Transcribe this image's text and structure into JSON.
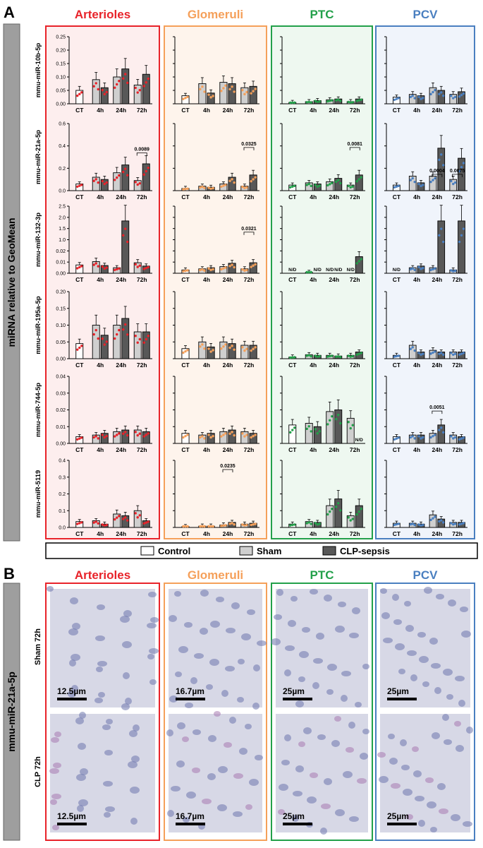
{
  "panels": {
    "a": "A",
    "b": "B"
  },
  "y_axis_title": "miRNA relative to GeoMean",
  "regions": [
    {
      "name": "Arterioles",
      "color": "#e8232a",
      "fill": "#fdeeee"
    },
    {
      "name": "Glomeruli",
      "color": "#f5a05a",
      "fill": "#fef4ec"
    },
    {
      "name": "PTC",
      "color": "#23a04a",
      "fill": "#eef8f0"
    },
    {
      "name": "PCV",
      "color": "#4a7fc0",
      "fill": "#f0f4fb"
    }
  ],
  "mirnas": [
    "mmu-miR-10b-5p",
    "mmu-miR-21a-5p",
    "mmu-miR-132-3p",
    "mmu-miR-195a-5p",
    "mmu-miR-744-5p",
    "mmu-miR-5119"
  ],
  "x_ticks": [
    "CT",
    "4h",
    "24h",
    "72h"
  ],
  "y_ticks": [
    [
      "0.00",
      "0.05",
      "0.10",
      "0.15",
      "0.20",
      "0.25"
    ],
    [
      "0.0",
      "0.2",
      "0.4",
      "0.6"
    ],
    [
      "0.00",
      "0.01",
      "0.02",
      "1.0",
      "1.5",
      "2.0",
      "2.5"
    ],
    [
      "0.00",
      "0.05",
      "0.10",
      "0.15",
      "0.20"
    ],
    [
      "0.00",
      "0.01",
      "0.02",
      "0.03",
      "0.04"
    ],
    [
      "0.0",
      "0.1",
      "0.2",
      "0.3",
      "0.4"
    ]
  ],
  "legend": [
    {
      "label": "Control",
      "color": "#ffffff"
    },
    {
      "label": "Sham",
      "color": "#cfcfcf"
    },
    {
      "label": "CLP-sepsis",
      "color": "#585858"
    }
  ],
  "pvalues": [
    {
      "row": 1,
      "region": 0,
      "label": "0.0089"
    },
    {
      "row": 1,
      "region": 1,
      "label": "0.0325"
    },
    {
      "row": 1,
      "region": 2,
      "label": "0.0081"
    },
    {
      "row": 1,
      "region": 3,
      "label": "0.0004"
    },
    {
      "row": 1,
      "region": 3,
      "label": "0.0075"
    },
    {
      "row": 2,
      "region": 1,
      "label": "0.0321"
    },
    {
      "row": 4,
      "region": 3,
      "label": "0.0051"
    },
    {
      "row": 5,
      "region": 1,
      "label": "0.0235"
    }
  ],
  "nd_label": "N/D",
  "panel_b": {
    "row_group_label": "mmu-miR-21a-5p",
    "row_labels": [
      "Sham 72h",
      "CLP 72h"
    ],
    "scale_bars": [
      "12.5µm",
      "16.7µm",
      "25µm",
      "25µm"
    ]
  },
  "chart_data": {
    "type": "bar",
    "series_order": [
      "Control",
      "Sham",
      "CLP-sepsis"
    ],
    "categories": [
      "CT",
      "4h",
      "24h",
      "72h"
    ],
    "note_bar_layout": "CT: Control; 4h, 24h, 72h: Sham then CLP-sepsis",
    "charts": [
      {
        "mirna": "mmu-miR-10b-5p",
        "ylim": [
          0,
          0.25
        ],
        "regions": {
          "Arterioles": [
            0.05,
            0.09,
            0.06,
            0.1,
            0.13,
            0.07,
            0.11
          ],
          "Glomeruli": [
            0.03,
            0.075,
            0.04,
            0.08,
            0.075,
            0.06,
            0.065
          ],
          "PTC": [
            0.005,
            0.008,
            0.012,
            0.015,
            0.018,
            0.008,
            0.018
          ],
          "PCV": [
            0.025,
            0.035,
            0.03,
            0.06,
            0.05,
            0.035,
            0.045
          ]
        }
      },
      {
        "mirna": "mmu-miR-21a-5p",
        "ylim": [
          0,
          0.6
        ],
        "regions": {
          "Arterioles": [
            0.06,
            0.12,
            0.1,
            0.16,
            0.23,
            0.09,
            0.24
          ],
          "Glomeruli": [
            0.02,
            0.04,
            0.03,
            0.06,
            0.12,
            0.04,
            0.14
          ],
          "PTC": [
            0.05,
            0.07,
            0.06,
            0.08,
            0.11,
            0.05,
            0.14
          ],
          "PCV": [
            0.05,
            0.13,
            0.07,
            0.13,
            0.38,
            0.1,
            0.29
          ]
        }
      },
      {
        "mirna": "mmu-miR-132-3p",
        "ylim": [
          0,
          2.5
        ],
        "regions": {
          "Arterioles": [
            0.0075,
            0.0105,
            0.007,
            0.005,
            2.0,
            0.0095,
            0.0065
          ],
          "Glomeruli": [
            0.003,
            0.004,
            0.005,
            0.006,
            0.009,
            0.004,
            0.0095
          ],
          "PTC": [
            null,
            0.0008,
            null,
            null,
            null,
            null,
            0.015
          ],
          "PCV": [
            null,
            0.005,
            0.0065,
            0.005,
            2.0,
            0.003,
            2.0
          ]
        }
      },
      {
        "mirna": "mmu-miR-195a-5p",
        "ylim": [
          0,
          0.2
        ],
        "regions": {
          "Arterioles": [
            0.045,
            0.1,
            0.07,
            0.1,
            0.12,
            0.08,
            0.08
          ],
          "Glomeruli": [
            0.03,
            0.05,
            0.035,
            0.05,
            0.045,
            0.04,
            0.04
          ],
          "PTC": [
            0.005,
            0.012,
            0.01,
            0.01,
            0.008,
            0.01,
            0.02
          ],
          "PCV": [
            0.01,
            0.04,
            0.02,
            0.025,
            0.02,
            0.02,
            0.02
          ]
        }
      },
      {
        "mirna": "mmu-miR-744-5p",
        "ylim": [
          0,
          0.04
        ],
        "regions": {
          "Arterioles": [
            0.004,
            0.005,
            0.006,
            0.007,
            0.008,
            0.008,
            0.007
          ],
          "Glomeruli": [
            0.006,
            0.005,
            0.006,
            0.007,
            0.008,
            0.007,
            0.006
          ],
          "PTC": [
            0.011,
            0.012,
            0.01,
            0.019,
            0.02,
            0.015,
            null
          ],
          "PCV": [
            0.004,
            0.005,
            0.005,
            0.006,
            0.011,
            0.005,
            0.004
          ]
        }
      },
      {
        "mirna": "mmu-miR-5119",
        "ylim": [
          0,
          0.4
        ],
        "regions": {
          "Arterioles": [
            0.035,
            0.04,
            0.02,
            0.08,
            0.07,
            0.1,
            0.04
          ],
          "Glomeruli": [
            0.005,
            0.008,
            0.008,
            0.015,
            0.03,
            0.02,
            0.025
          ],
          "PTC": [
            0.02,
            0.035,
            0.03,
            0.13,
            0.17,
            0.07,
            0.13
          ],
          "PCV": [
            0.025,
            0.025,
            0.02,
            0.075,
            0.05,
            0.03,
            0.03
          ]
        }
      }
    ]
  }
}
